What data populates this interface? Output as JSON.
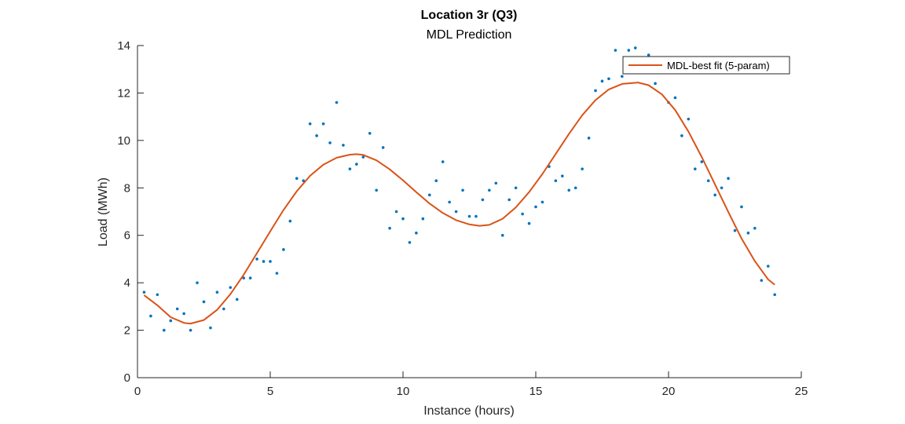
{
  "chart_data": {
    "type": "scatter",
    "title": "Location 3r (Q3)",
    "subtitle": "MDL Prediction",
    "xlabel": "Instance (hours)",
    "ylabel": "Load (MWh)",
    "xlim": [
      0,
      25
    ],
    "ylim": [
      0,
      14
    ],
    "xticks": [
      0,
      5,
      10,
      15,
      20,
      25
    ],
    "yticks": [
      0,
      2,
      4,
      6,
      8,
      10,
      12,
      14
    ],
    "grid": false,
    "legend_position": "top-right",
    "series": [
      {
        "kind": "points",
        "color": "#0072BD",
        "x": [
          0.25,
          0.5,
          0.75,
          1.0,
          1.25,
          1.5,
          1.75,
          2.0,
          2.25,
          2.5,
          2.75,
          3.0,
          3.25,
          3.5,
          3.75,
          4.0,
          4.25,
          4.5,
          4.75,
          5.0,
          5.25,
          5.5,
          5.75,
          6.0,
          6.25,
          6.5,
          6.75,
          7.0,
          7.25,
          7.5,
          7.75,
          8.0,
          8.25,
          8.5,
          8.75,
          9.0,
          9.25,
          9.5,
          9.75,
          10.0,
          10.25,
          10.5,
          10.75,
          11.0,
          11.25,
          11.5,
          11.75,
          12.0,
          12.25,
          12.5,
          12.75,
          13.0,
          13.25,
          13.5,
          13.75,
          14.0,
          14.25,
          14.5,
          14.75,
          15.0,
          15.25,
          15.5,
          15.75,
          16.0,
          16.25,
          16.5,
          16.75,
          17.0,
          17.25,
          17.5,
          17.75,
          18.0,
          18.25,
          18.5,
          18.75,
          19.0,
          19.25,
          19.5,
          19.75,
          20.0,
          20.25,
          20.5,
          20.75,
          21.0,
          21.25,
          21.5,
          21.75,
          22.0,
          22.25,
          22.5,
          22.75,
          23.0,
          23.25,
          23.5,
          23.75,
          24.0
        ],
        "y": [
          3.6,
          2.6,
          3.5,
          2.0,
          2.4,
          2.9,
          2.7,
          2.0,
          4.0,
          3.2,
          2.1,
          3.6,
          2.9,
          3.8,
          3.3,
          4.2,
          4.2,
          5.0,
          4.9,
          4.9,
          4.4,
          5.4,
          6.6,
          8.4,
          8.3,
          10.7,
          10.2,
          10.7,
          9.9,
          11.6,
          9.8,
          8.8,
          9.0,
          9.3,
          10.3,
          7.9,
          9.7,
          6.3,
          7.0,
          6.7,
          5.7,
          6.1,
          6.7,
          7.7,
          8.3,
          9.1,
          7.4,
          7.0,
          7.9,
          6.8,
          6.8,
          7.5,
          7.9,
          8.2,
          6.0,
          7.5,
          8.0,
          6.9,
          6.5,
          7.2,
          7.4,
          8.9,
          8.3,
          8.5,
          7.9,
          8.0,
          8.8,
          10.1,
          12.1,
          12.5,
          12.6,
          13.8,
          12.7,
          13.8,
          13.9,
          13.2,
          13.6,
          12.4,
          12.9,
          11.6,
          11.8,
          10.2,
          10.9,
          8.8,
          9.1,
          8.3,
          7.7,
          8.0,
          8.4,
          6.2,
          7.2,
          6.1,
          6.3,
          4.1,
          4.7,
          3.5
        ]
      },
      {
        "kind": "line",
        "name": "MDL-best fit (5-param)",
        "color": "#D95319",
        "x": [
          0.25,
          0.75,
          1.25,
          1.75,
          2.0,
          2.5,
          3.0,
          3.5,
          4.0,
          4.5,
          5.0,
          5.5,
          6.0,
          6.5,
          7.0,
          7.5,
          8.0,
          8.25,
          8.5,
          9.0,
          9.5,
          10.0,
          10.5,
          11.0,
          11.5,
          12.0,
          12.5,
          12.875,
          13.25,
          13.75,
          14.25,
          14.75,
          15.25,
          15.75,
          16.25,
          16.75,
          17.25,
          17.75,
          18.25,
          18.85,
          19.25,
          19.75,
          20.25,
          20.75,
          21.25,
          21.75,
          22.25,
          22.75,
          23.25,
          23.75,
          24.0
        ],
        "y": [
          3.48,
          3.05,
          2.55,
          2.31,
          2.28,
          2.43,
          2.86,
          3.52,
          4.34,
          5.25,
          6.17,
          7.07,
          7.86,
          8.51,
          8.98,
          9.27,
          9.4,
          9.42,
          9.39,
          9.16,
          8.78,
          8.32,
          7.82,
          7.34,
          6.94,
          6.64,
          6.46,
          6.4,
          6.44,
          6.7,
          7.18,
          7.82,
          8.59,
          9.43,
          10.28,
          11.06,
          11.7,
          12.15,
          12.38,
          12.44,
          12.33,
          11.94,
          11.28,
          10.37,
          9.3,
          8.15,
          6.99,
          5.86,
          4.91,
          4.14,
          3.92
        ]
      }
    ]
  }
}
